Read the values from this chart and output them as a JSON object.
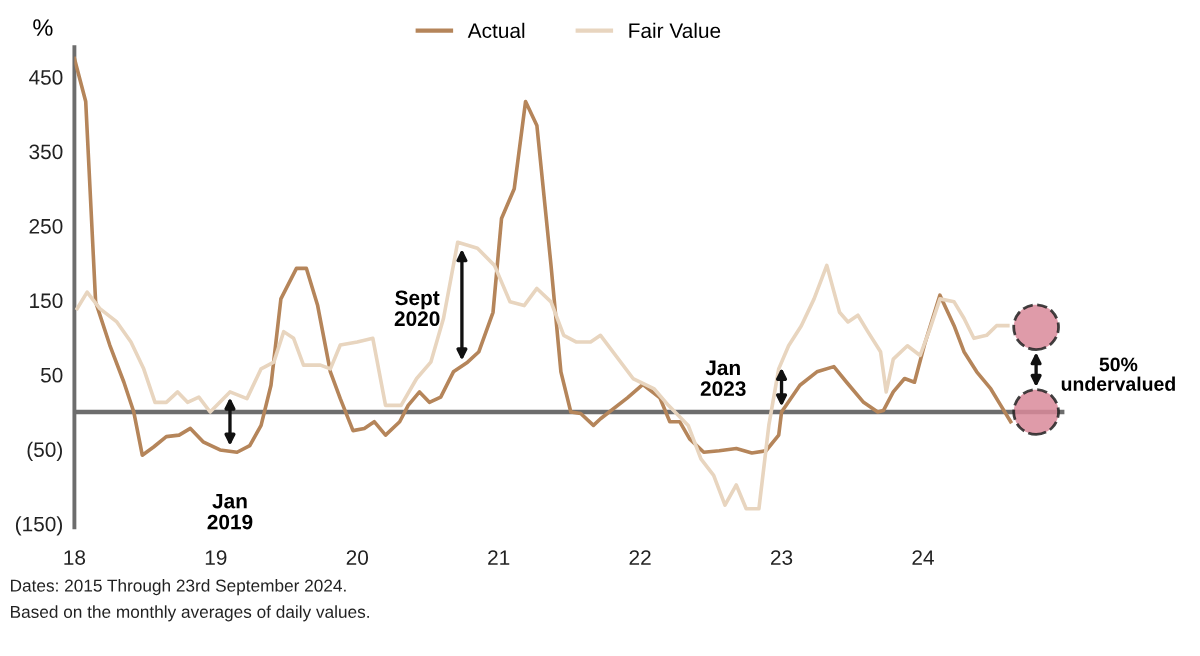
{
  "chart_data": {
    "type": "line",
    "ylabel": "%",
    "xlim": [
      18,
      25
    ],
    "xticks": [
      18,
      19,
      20,
      21,
      22,
      23,
      24
    ],
    "ylim": [
      -155,
      490
    ],
    "yticks": [
      {
        "value": 450,
        "label": "450"
      },
      {
        "value": 350,
        "label": "350"
      },
      {
        "value": 250,
        "label": "250"
      },
      {
        "value": 150,
        "label": "150"
      },
      {
        "value": 50,
        "label": "50"
      },
      {
        "value": -50,
        "label": "(50)"
      },
      {
        "value": -150,
        "label": "(150)"
      }
    ],
    "grid": false,
    "legend": "top",
    "marker": "none",
    "line_style": "solid",
    "ref_lines": [
      {
        "axis": "y",
        "value": 0,
        "color": "#6d6d6d"
      }
    ],
    "series": [
      {
        "name": "Actual",
        "color": "#b5855a",
        "x": [
          18.0,
          18.08,
          18.15,
          18.25,
          18.35,
          18.42,
          18.48,
          18.56,
          18.65,
          18.74,
          18.82,
          18.91,
          19.03,
          19.15,
          19.24,
          19.32,
          19.39,
          19.46,
          19.57,
          19.64,
          19.72,
          19.81,
          19.88,
          19.97,
          20.05,
          20.12,
          20.2,
          20.3,
          20.36,
          20.44,
          20.51,
          20.59,
          20.68,
          20.78,
          20.86,
          20.96,
          21.02,
          21.11,
          21.19,
          21.27,
          21.37,
          21.44,
          21.51,
          21.58,
          21.67,
          21.72,
          21.91,
          22.02,
          22.14,
          22.21,
          22.28,
          22.35,
          22.45,
          22.56,
          22.68,
          22.79,
          22.89,
          22.98,
          23.0,
          23.13,
          23.25,
          23.37,
          23.46,
          23.58,
          23.68,
          23.72,
          23.79,
          23.87,
          23.94,
          24.01,
          24.12,
          24.22,
          24.29,
          24.38,
          24.48,
          24.55,
          24.62
        ],
        "values": [
          475,
          417,
          148,
          90,
          40,
          0,
          -58,
          -47,
          -33,
          -31,
          -22,
          -40,
          -51,
          -54,
          -45,
          -18,
          36,
          152,
          193,
          193,
          143,
          54,
          18,
          -25,
          -22,
          -13,
          -31,
          -13,
          9,
          27,
          13,
          20,
          54,
          67,
          81,
          134,
          260,
          300,
          417,
          385,
          197,
          54,
          0,
          -2,
          -18,
          -9,
          19,
          37,
          19,
          -13,
          -13,
          -36,
          -54,
          -52,
          -49,
          -55,
          -52,
          -31,
          0,
          36,
          54,
          61,
          40,
          13,
          0,
          2,
          27,
          45,
          40,
          90,
          157,
          116,
          81,
          54,
          31,
          9,
          -13
        ]
      },
      {
        "name": "Fair Value",
        "color": "#e8d5bf",
        "x": [
          18.02,
          18.09,
          18.18,
          18.3,
          18.4,
          18.49,
          18.57,
          18.65,
          18.73,
          18.8,
          18.88,
          18.96,
          19.1,
          19.22,
          19.32,
          19.41,
          19.48,
          19.55,
          19.62,
          19.74,
          19.81,
          19.88,
          20.0,
          20.11,
          20.2,
          20.31,
          20.42,
          20.52,
          20.61,
          20.71,
          20.85,
          20.97,
          21.08,
          21.18,
          21.27,
          21.37,
          21.46,
          21.55,
          21.65,
          21.72,
          21.95,
          22.1,
          22.2,
          22.34,
          22.43,
          22.52,
          22.6,
          22.68,
          22.75,
          22.84,
          22.91,
          22.98,
          23.05,
          23.14,
          23.23,
          23.32,
          23.41,
          23.47,
          23.54,
          23.61,
          23.7,
          23.74,
          23.79,
          23.89,
          23.98,
          24.05,
          24.12,
          24.22,
          24.29,
          24.36,
          24.45,
          24.52,
          24.6
        ],
        "values": [
          139,
          161,
          139,
          121,
          94,
          58,
          13,
          13,
          27,
          13,
          20,
          0,
          27,
          18,
          58,
          67,
          108,
          99,
          63,
          63,
          58,
          90,
          94,
          99,
          9,
          9,
          45,
          67,
          126,
          228,
          220,
          197,
          148,
          143,
          166,
          148,
          103,
          94,
          94,
          103,
          45,
          31,
          9,
          -18,
          -63,
          -85,
          -125,
          -98,
          -130,
          -130,
          -18,
          58,
          89,
          116,
          152,
          197,
          134,
          121,
          130,
          108,
          81,
          27,
          71,
          89,
          76,
          112,
          152,
          148,
          126,
          99,
          103,
          116,
          116
        ]
      },
      {
        "type": "scatter",
        "color": "#d98a9a",
        "marker": "circle",
        "x": [
          24.8,
          24.8
        ],
        "values": [
          114,
          0
        ]
      }
    ],
    "annotations": [
      {
        "text": "Jan\n2019",
        "x": 19.1,
        "y": -54
      },
      {
        "text": "Sept\n2020",
        "x": 20.62,
        "y": 137
      },
      {
        "text": "Jan\n2023",
        "x": 23.0,
        "y": 43
      },
      "50%\nundervalued",
      "Dates: 2015 Through 23rd September 2024.",
      "Based on the monthly averages of daily values."
    ]
  }
}
